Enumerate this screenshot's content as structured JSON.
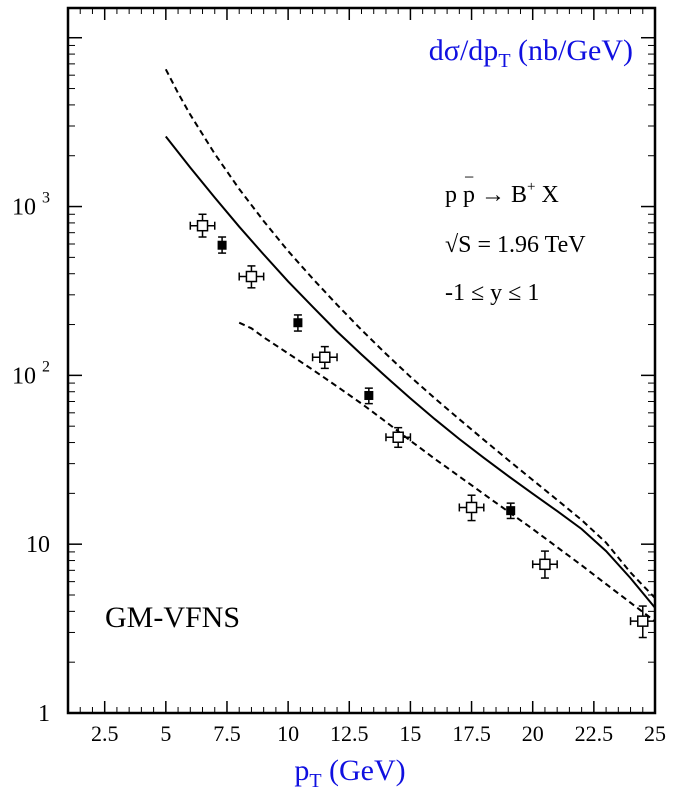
{
  "chart_data": {
    "type": "scatter",
    "title": "dσ/dp",
    "title_sub": "T",
    "title_unit": " (nb/GeV)",
    "xlabel": "p",
    "xlabel_sub": "T",
    "xlabel_unit": " (GeV)",
    "ylabel": "",
    "xlim": [
      1,
      25
    ],
    "ylim": [
      1,
      15000
    ],
    "yscale": "log",
    "grid": false,
    "label_color": "#1010e0",
    "x_ticks": [
      "2.5",
      "5",
      "7.5",
      "10",
      "12.5",
      "15",
      "17.5",
      "20",
      "22.5",
      "25"
    ],
    "x_tick_values": [
      2.5,
      5,
      7.5,
      10,
      12.5,
      15,
      17.5,
      20,
      22.5,
      25
    ],
    "y_ticks": [
      {
        "value": 1,
        "base": "1",
        "exp": ""
      },
      {
        "value": 10,
        "base": "10",
        "exp": ""
      },
      {
        "value": 100,
        "base": "10",
        "exp": "2"
      },
      {
        "value": 1000,
        "base": "10",
        "exp": "3"
      }
    ],
    "annotations": {
      "process": "p p → B",
      "process_bar": "−",
      "process_sup": "+",
      "process_tail": " X",
      "energy": "√S = 1.96 TeV",
      "rapidity": "-1 ≤  y ≤ 1",
      "scheme": "GM-VFNS"
    },
    "series": [
      {
        "style": "solid",
        "x": [
          5,
          5.5,
          6,
          7,
          8,
          9,
          10,
          11,
          12,
          13,
          14,
          15,
          16,
          17,
          18,
          19,
          20,
          21,
          22,
          23,
          24,
          25
        ],
        "y": [
          2600,
          2100,
          1700,
          1130,
          760,
          520,
          360,
          255,
          182,
          133,
          98,
          73,
          55,
          42,
          32.5,
          25.3,
          19.9,
          15.7,
          12.3,
          9.1,
          6.3,
          4.2
        ]
      },
      {
        "style": "dashed",
        "x": [
          5,
          5.5,
          6,
          7,
          8,
          9,
          10,
          11,
          12,
          13,
          14,
          15,
          16,
          17,
          18,
          19,
          20,
          21,
          22,
          23,
          24,
          25
        ],
        "y": [
          6500,
          4700,
          3500,
          2050,
          1270,
          820,
          545,
          375,
          262,
          186,
          134,
          98,
          73,
          55,
          41.5,
          31.5,
          24,
          18.3,
          13.9,
          10.2,
          6.8,
          4.8
        ]
      },
      {
        "style": "dashed",
        "x": [
          8,
          8.5,
          9,
          10,
          11,
          12,
          13,
          14,
          15,
          16,
          17,
          18,
          19,
          20,
          21,
          22,
          23,
          24,
          25
        ],
        "y": [
          205,
          190,
          168,
          135,
          108,
          86,
          68,
          53,
          41,
          32,
          25.2,
          19.8,
          15.6,
          12.3,
          9.6,
          7.5,
          5.8,
          4.5,
          3.5
        ]
      }
    ],
    "data_points": [
      {
        "marker": "open-square",
        "x": 6.5,
        "y": 770,
        "xerr": 0.5,
        "ylo": 660,
        "yhi": 900
      },
      {
        "marker": "filled-square",
        "x": 7.3,
        "y": 590,
        "xerr": 0,
        "ylo": 530,
        "yhi": 660
      },
      {
        "marker": "open-square",
        "x": 8.5,
        "y": 385,
        "xerr": 0.5,
        "ylo": 330,
        "yhi": 445
      },
      {
        "marker": "filled-square",
        "x": 10.4,
        "y": 205,
        "xerr": 0,
        "ylo": 183,
        "yhi": 228
      },
      {
        "marker": "open-square",
        "x": 11.5,
        "y": 128,
        "xerr": 0.5,
        "ylo": 110,
        "yhi": 148
      },
      {
        "marker": "filled-square",
        "x": 13.3,
        "y": 76,
        "xerr": 0,
        "ylo": 68,
        "yhi": 84
      },
      {
        "marker": "open-square",
        "x": 14.5,
        "y": 43,
        "xerr": 0.5,
        "ylo": 37.5,
        "yhi": 49
      },
      {
        "marker": "open-square",
        "x": 17.5,
        "y": 16.5,
        "xerr": 0.5,
        "ylo": 13.8,
        "yhi": 19.5
      },
      {
        "marker": "filled-square",
        "x": 19.1,
        "y": 15.8,
        "xerr": 0,
        "ylo": 14.2,
        "yhi": 17.5
      },
      {
        "marker": "open-square",
        "x": 20.5,
        "y": 7.6,
        "xerr": 0.5,
        "ylo": 6.3,
        "yhi": 9.1
      },
      {
        "marker": "open-square",
        "x": 24.5,
        "y": 3.5,
        "xerr": 0.5,
        "ylo": 2.8,
        "yhi": 4.3
      }
    ]
  }
}
